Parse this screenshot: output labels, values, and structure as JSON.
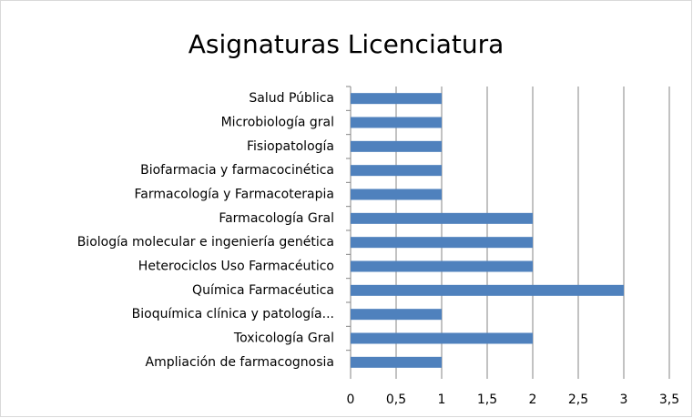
{
  "chart_data": {
    "type": "bar",
    "orientation": "horizontal",
    "title": "Asignaturas Licenciatura",
    "categories": [
      "Salud Pública",
      "Microbiología gral",
      "Fisiopatología",
      "Biofarmacia y farmacocinética",
      "Farmacología y Farmacoterapia",
      "Farmacología Gral",
      "Biología molecular e ingeniería genética",
      "Heterociclos Uso Farmacéutico",
      "Química Farmacéutica",
      "Bioquímica clínica y patología...",
      "Toxicología Gral",
      "Ampliación de farmacognosia"
    ],
    "values": [
      1,
      1,
      1,
      1,
      1,
      2,
      2,
      2,
      3,
      1,
      2,
      1
    ],
    "color": "#4f81bd",
    "xlim": [
      0,
      3.5
    ],
    "xticks": [
      0,
      {
        "value": 0.5,
        "label": "0,5"
      },
      1,
      {
        "value": 1.5,
        "label": "1,5"
      },
      2,
      {
        "value": 2.5,
        "label": "2,5"
      },
      3,
      {
        "value": 3.5,
        "label": "3,5"
      }
    ],
    "grid": true
  }
}
